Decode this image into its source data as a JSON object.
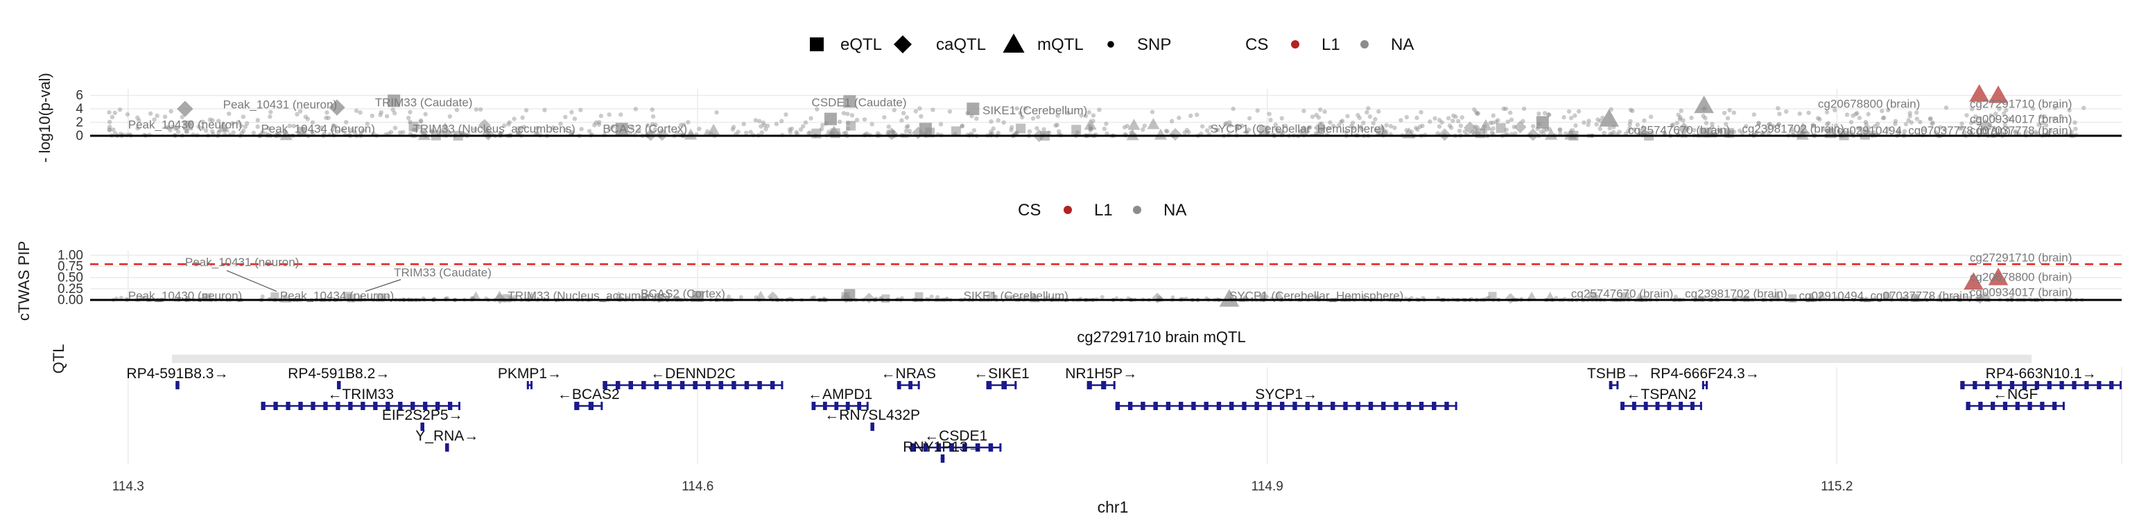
{
  "chart_data": [
    {
      "type": "scatter",
      "ylabel": "- log10(p-val)",
      "yticks": [
        0,
        2,
        4,
        6
      ],
      "ylim": [
        0,
        7
      ],
      "xlim": [
        114.28,
        115.35
      ],
      "legend": {
        "placement": "top",
        "shape_title": "",
        "shapes": [
          {
            "label": "eQTL",
            "shape": "square"
          },
          {
            "label": "caQTL",
            "shape": "diamond"
          },
          {
            "label": "mQTL",
            "shape": "triangle"
          },
          {
            "label": "SNP",
            "shape": "circle"
          }
        ],
        "cs_title": "CS",
        "cs": [
          {
            "label": "L1",
            "color": "#b22222"
          },
          {
            "label": "NA",
            "color": "#8c8c8c"
          }
        ]
      },
      "annotations": [
        {
          "text": "Peak_10430 (neuron)",
          "x": 114.3,
          "y": 1.7
        },
        {
          "text": "Peak_10431 (neuron)",
          "x": 114.35,
          "y": 4.7
        },
        {
          "text": "Peak_10434 (neuron)",
          "x": 114.37,
          "y": 1.1
        },
        {
          "text": "TRIM33 (Caudate)",
          "x": 114.43,
          "y": 5.0
        },
        {
          "text": "TRIM33 (Nucleus_accumbens)",
          "x": 114.45,
          "y": 1.1
        },
        {
          "text": "BCAS2 (Cortex)",
          "x": 114.55,
          "y": 1.1
        },
        {
          "text": "CSDE1 (Caudate)",
          "x": 114.66,
          "y": 5.0
        },
        {
          "text": "SIKE1 (Cerebellum)",
          "x": 114.75,
          "y": 3.8
        },
        {
          "text": "SYCP1 (Cerebellar_Hemisphere)",
          "x": 114.87,
          "y": 1.1
        },
        {
          "text": "cg25747670 (brain)",
          "x": 115.09,
          "y": 0.9
        },
        {
          "text": "cg23981702 (brain)",
          "x": 115.15,
          "y": 1.1
        },
        {
          "text": "cg20678800 (brain)",
          "x": 115.19,
          "y": 4.8
        },
        {
          "text": "cg27291710 (brain)",
          "x": 115.27,
          "y": 4.8
        },
        {
          "text": "cg00934017 (brain)",
          "x": 115.27,
          "y": 2.5
        },
        {
          "text": "cg02910494_cg07037778 (brain)",
          "x": 115.2,
          "y": 0.8
        },
        {
          "text": "cg07037778 (brain)",
          "x": 115.27,
          "y": 0.8
        }
      ],
      "points": [
        {
          "x": 114.41,
          "y": 4.2,
          "shape": "diamond",
          "cs": "NA"
        },
        {
          "x": 114.33,
          "y": 4.0,
          "shape": "diamond",
          "cs": "NA"
        },
        {
          "x": 114.44,
          "y": 5.2,
          "shape": "square",
          "cs": "NA"
        },
        {
          "x": 114.56,
          "y": 1.0,
          "shape": "square",
          "cs": "NA"
        },
        {
          "x": 114.67,
          "y": 2.5,
          "shape": "square",
          "cs": "NA"
        },
        {
          "x": 114.68,
          "y": 5.1,
          "shape": "square",
          "cs": "NA"
        },
        {
          "x": 114.745,
          "y": 4.0,
          "shape": "square",
          "cs": "NA"
        },
        {
          "x": 114.72,
          "y": 1.0,
          "shape": "square",
          "cs": "NA"
        },
        {
          "x": 115.08,
          "y": 2.5,
          "shape": "triangle",
          "cs": "NA"
        },
        {
          "x": 115.13,
          "y": 4.5,
          "shape": "triangle",
          "cs": "NA"
        },
        {
          "x": 115.045,
          "y": 2.0,
          "shape": "square",
          "cs": "NA"
        },
        {
          "x": 115.275,
          "y": 6.2,
          "shape": "triangle",
          "cs": "L1"
        },
        {
          "x": 115.285,
          "y": 6.0,
          "shape": "triangle",
          "cs": "L1"
        }
      ]
    },
    {
      "type": "scatter",
      "ylabel": "cTWAS PIP",
      "yticks": [
        "0.00",
        "0.25",
        "0.50",
        "0.75",
        "1.00"
      ],
      "ylim": [
        0,
        1.1
      ],
      "threshold": 0.8,
      "legend": {
        "placement": "top",
        "cs_title": "CS",
        "cs": [
          {
            "label": "L1",
            "color": "#b22222"
          },
          {
            "label": "NA",
            "color": "#8c8c8c"
          }
        ]
      },
      "annotations": [
        {
          "text": "Peak_10430 (neuron)",
          "x": 114.3,
          "y": 0.1
        },
        {
          "text": "Peak_10431 (neuron)",
          "x": 114.33,
          "y": 0.85
        },
        {
          "text": "Peak_10434 (neuron)",
          "x": 114.38,
          "y": 0.1
        },
        {
          "text": "TRIM33 (Caudate)",
          "x": 114.44,
          "y": 0.62
        },
        {
          "text": "TRIM33 (Nucleus_accumbens)",
          "x": 114.5,
          "y": 0.1
        },
        {
          "text": "BCAS2 (Cortex)",
          "x": 114.57,
          "y": 0.15
        },
        {
          "text": "SIKE1 (Cerebellum)",
          "x": 114.74,
          "y": 0.1
        },
        {
          "text": "SYCP1 (Cerebellar_Hemisphere)",
          "x": 114.88,
          "y": 0.1
        },
        {
          "text": "cg25747670 (brain)",
          "x": 115.06,
          "y": 0.15
        },
        {
          "text": "cg23981702 (brain)",
          "x": 115.12,
          "y": 0.15
        },
        {
          "text": "cg02910494_cg07037778 (brain)",
          "x": 115.18,
          "y": 0.1
        },
        {
          "text": "cg27291710 (brain)",
          "x": 115.27,
          "y": 0.95
        },
        {
          "text": "cg20678800 (brain)",
          "x": 115.27,
          "y": 0.52
        },
        {
          "text": "cg00934017 (brain)",
          "x": 115.27,
          "y": 0.18
        }
      ],
      "points": [
        {
          "x": 114.6,
          "y": 0.08,
          "shape": "square",
          "cs": "NA"
        },
        {
          "x": 114.68,
          "y": 0.12,
          "shape": "square",
          "cs": "NA"
        },
        {
          "x": 114.88,
          "y": 0.02,
          "shape": "triangle",
          "cs": "NA"
        },
        {
          "x": 115.272,
          "y": 0.4,
          "shape": "triangle",
          "cs": "L1"
        },
        {
          "x": 115.285,
          "y": 0.5,
          "shape": "triangle",
          "cs": "L1"
        }
      ]
    },
    {
      "type": "gene_track",
      "title": "cg27291710 brain mQTL",
      "panel_label": "QTL",
      "xlabel": "chr1",
      "xticks": [
        "114.3",
        "114.6",
        "114.9",
        "115.2"
      ],
      "xtick_values": [
        114.3,
        114.6,
        114.9,
        115.2
      ],
      "xlim": [
        114.28,
        115.35
      ],
      "genes": [
        {
          "label": "RP4-591B8.3→",
          "start": 114.325,
          "end": 114.327,
          "row": 0
        },
        {
          "label": "RP4-591B8.2→",
          "start": 114.41,
          "end": 114.412,
          "row": 0
        },
        {
          "label": "PKMP1→",
          "start": 114.51,
          "end": 114.513,
          "row": 0
        },
        {
          "label": "←DENND2C",
          "start": 114.55,
          "end": 114.645,
          "row": 0
        },
        {
          "label": "←NRAS",
          "start": 114.705,
          "end": 114.717,
          "row": 0
        },
        {
          "label": "←SIKE1",
          "start": 114.752,
          "end": 114.768,
          "row": 0
        },
        {
          "label": "NR1H5P→",
          "start": 114.805,
          "end": 114.82,
          "row": 0
        },
        {
          "label": "TSHB→",
          "start": 115.08,
          "end": 115.085,
          "row": 0
        },
        {
          "label": "RP4-666F24.3→",
          "start": 115.129,
          "end": 115.132,
          "row": 0
        },
        {
          "label": "RP4-663N10.1→",
          "start": 115.265,
          "end": 115.35,
          "row": 0
        },
        {
          "label": "←TRIM33",
          "start": 114.37,
          "end": 114.475,
          "row": 1
        },
        {
          "label": "←BCAS2",
          "start": 114.535,
          "end": 114.55,
          "row": 1
        },
        {
          "label": "←AMPD1",
          "start": 114.66,
          "end": 114.69,
          "row": 1
        },
        {
          "label": "SYCP1→",
          "start": 114.82,
          "end": 115.0,
          "row": 1
        },
        {
          "label": "←TSPAN2",
          "start": 115.086,
          "end": 115.129,
          "row": 1
        },
        {
          "label": "←NGF",
          "start": 115.268,
          "end": 115.32,
          "row": 1
        },
        {
          "label": "EIF2S2P5→",
          "start": 114.454,
          "end": 114.456,
          "row": 2
        },
        {
          "label": "←RN7SL432P",
          "start": 114.691,
          "end": 114.693,
          "row": 2
        },
        {
          "label": "Y_RNA→",
          "start": 114.467,
          "end": 114.469,
          "row": 3
        },
        {
          "label": "←CSDE1",
          "start": 114.712,
          "end": 114.76,
          "row": 3
        },
        {
          "label": "RNY1P13→",
          "start": 114.728,
          "end": 114.73,
          "row": 4
        }
      ]
    }
  ]
}
